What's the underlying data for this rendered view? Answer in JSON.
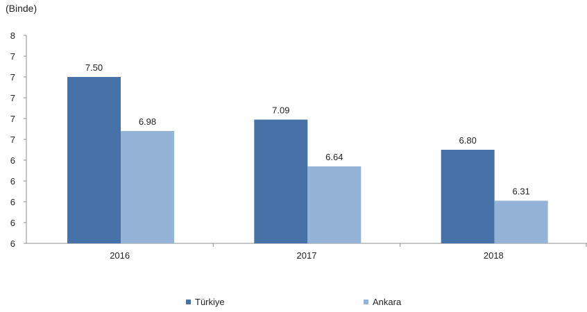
{
  "chart_data": {
    "type": "bar",
    "unit_label": "(Binde)",
    "categories": [
      "2016",
      "2017",
      "2018"
    ],
    "series": [
      {
        "name": "Türkiye",
        "values": [
          7.5,
          7.09,
          6.8
        ],
        "labels": [
          "7.50",
          "7.09",
          "6.80"
        ],
        "color": "#4672a8"
      },
      {
        "name": "Ankara",
        "values": [
          6.98,
          6.64,
          6.31
        ],
        "labels": [
          "6.98",
          "6.64",
          "6.31"
        ],
        "color": "#95b3d7"
      }
    ],
    "ylim": [
      5.9,
      7.9
    ],
    "yticks": [
      5.9,
      6.1,
      6.3,
      6.5,
      6.7,
      6.9,
      7.1,
      7.3,
      7.5,
      7.7,
      7.9
    ],
    "ytick_labels": [
      "6",
      "6",
      "6",
      "6",
      "6",
      "7",
      "7",
      "7",
      "7",
      "7",
      "8"
    ],
    "grid": false,
    "legend_position": "bottom"
  }
}
